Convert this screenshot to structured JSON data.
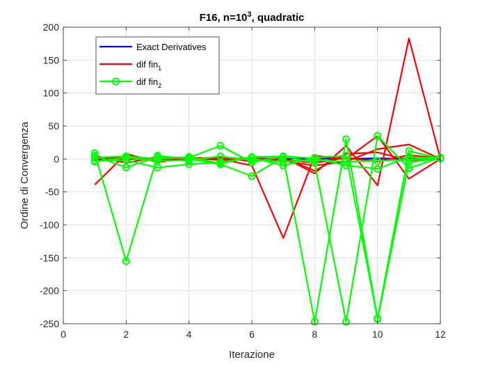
{
  "chart_data": {
    "type": "line",
    "title": {
      "main": "F16, n=10",
      "superscript": "3",
      "rest": ", quadratic"
    },
    "xlabel": "Iterazione",
    "ylabel": "Ordine di Convergenza",
    "xlim": [
      0,
      12
    ],
    "ylim": [
      -250,
      200
    ],
    "xticks": [
      0,
      2,
      4,
      6,
      8,
      10,
      12
    ],
    "yticks": [
      -250,
      -200,
      -150,
      -100,
      -50,
      0,
      50,
      100,
      150,
      200
    ],
    "grid": true,
    "legend": {
      "placement": "top-left",
      "entries": [
        {
          "label": "Exact Derivatives",
          "sub": "",
          "color": "#0000ff",
          "marker": "none"
        },
        {
          "label": "dif fin",
          "sub": "1",
          "color": "#ff0000",
          "marker": "none"
        },
        {
          "label": "dif fin",
          "sub": "2",
          "color": "#00ff00",
          "marker": "circle"
        }
      ]
    },
    "series": [
      {
        "group": "exact",
        "color": "#0000ff",
        "marker": "none",
        "x": [
          1,
          2,
          3,
          4,
          5,
          6,
          7,
          8,
          9,
          10,
          11,
          12
        ],
        "y": [
          1,
          0,
          1,
          0,
          1,
          0,
          1,
          0,
          1,
          0,
          1,
          1
        ]
      },
      {
        "group": "exact",
        "color": "#0000ff",
        "marker": "none",
        "x": [
          1,
          2,
          3,
          4,
          5,
          6,
          7,
          8,
          9,
          10,
          11,
          12
        ],
        "y": [
          -1,
          1,
          0,
          1,
          0,
          1,
          0,
          1,
          0,
          1,
          0,
          1
        ]
      },
      {
        "group": "fin1",
        "color": "#ff0000",
        "marker": "none",
        "x": [
          1,
          2,
          3,
          4,
          5,
          6,
          7,
          8,
          9,
          10,
          11,
          12
        ],
        "y": [
          -39,
          8,
          -5,
          2,
          0,
          -10,
          -120,
          5,
          0,
          35,
          -30,
          0
        ]
      },
      {
        "group": "fin1",
        "color": "#ff0000",
        "marker": "none",
        "x": [
          1,
          2,
          3,
          4,
          5,
          6,
          7,
          8,
          9,
          10,
          11,
          12
        ],
        "y": [
          5,
          -6,
          3,
          -1,
          2,
          -2,
          3,
          -22,
          20,
          -40,
          183,
          0
        ]
      },
      {
        "group": "fin1",
        "color": "#ff0000",
        "marker": "none",
        "x": [
          1,
          2,
          3,
          4,
          5,
          6,
          7,
          8,
          9,
          10,
          11,
          12
        ],
        "y": [
          0,
          3,
          -2,
          1,
          -1,
          2,
          -3,
          -10,
          -4,
          15,
          22,
          0
        ]
      },
      {
        "group": "fin1",
        "color": "#ff0000",
        "marker": "none",
        "x": [
          1,
          2,
          3,
          4,
          5,
          6,
          7,
          8,
          9,
          10,
          11,
          12
        ],
        "y": [
          2,
          -1,
          2,
          0,
          3,
          -4,
          2,
          -18,
          8,
          10,
          -2,
          1
        ]
      },
      {
        "group": "fin1",
        "color": "#ff0000",
        "marker": "none",
        "x": [
          1,
          2,
          3,
          4,
          5,
          6,
          7,
          8,
          9,
          10,
          11,
          12
        ],
        "y": [
          -2,
          4,
          0,
          2,
          -2,
          1,
          -1,
          -6,
          2,
          -4,
          6,
          1
        ]
      },
      {
        "group": "fin2",
        "color": "#00ff00",
        "marker": "circle",
        "x": [
          1,
          2,
          3,
          4,
          5,
          6,
          7,
          8,
          9,
          10,
          11,
          12
        ],
        "y": [
          9,
          -155,
          5,
          0,
          -8,
          -26,
          3,
          -247,
          30,
          -242,
          12,
          1
        ]
      },
      {
        "group": "fin2",
        "color": "#00ff00",
        "marker": "circle",
        "x": [
          1,
          2,
          3,
          4,
          5,
          6,
          7,
          8,
          9,
          10,
          11,
          12
        ],
        "y": [
          5,
          -13,
          3,
          2,
          20,
          -5,
          4,
          -6,
          -247,
          35,
          -14,
          2
        ]
      },
      {
        "group": "fin2",
        "color": "#00ff00",
        "marker": "circle",
        "x": [
          1,
          2,
          3,
          4,
          5,
          6,
          7,
          8,
          9,
          10,
          11,
          12
        ],
        "y": [
          -3,
          -2,
          -13,
          -8,
          -5,
          2,
          -10,
          2,
          5,
          -243,
          -5,
          1
        ]
      },
      {
        "group": "fin2",
        "color": "#00ff00",
        "marker": "circle",
        "x": [
          1,
          2,
          3,
          4,
          5,
          6,
          7,
          8,
          9,
          10,
          11,
          12
        ],
        "y": [
          2,
          4,
          0,
          3,
          -7,
          3,
          4,
          1,
          -10,
          -15,
          3,
          1
        ]
      },
      {
        "group": "fin2",
        "color": "#00ff00",
        "marker": "circle",
        "x": [
          1,
          2,
          3,
          4,
          5,
          6,
          7,
          8,
          9,
          10,
          11,
          12
        ],
        "y": [
          -4,
          2,
          -3,
          -2,
          4,
          -2,
          -4,
          -2,
          -4,
          -3,
          -1,
          2
        ]
      }
    ]
  }
}
